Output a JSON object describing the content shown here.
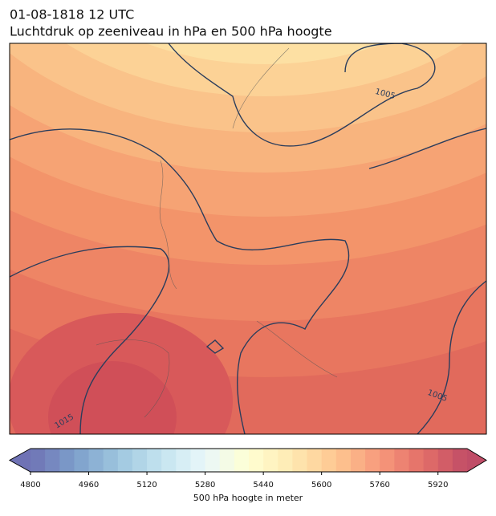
{
  "header": {
    "title_line1": "01-08-1818 12 UTC",
    "title_line2": "Luchtdruk op zeeniveau in hPa en 500 hPa hoogte"
  },
  "map": {
    "contour_labels": [
      "1005",
      "1005",
      "1015"
    ]
  },
  "colorbar": {
    "lim": [
      4800,
      6000
    ],
    "ticks": [
      4800,
      4960,
      5120,
      5280,
      5440,
      5600,
      5760,
      5920
    ],
    "label": "500 hPa hoogte in meter"
  }
}
